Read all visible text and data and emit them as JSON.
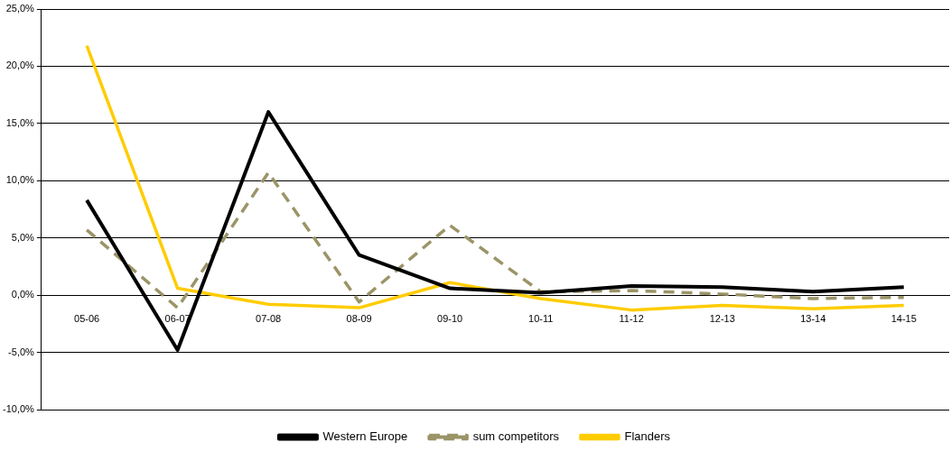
{
  "chart_data": {
    "type": "line",
    "categories": [
      "05-06",
      "06-07",
      "07-08",
      "08-09",
      "09-10",
      "10-11",
      "11-12",
      "12-13",
      "13-14",
      "14-15"
    ],
    "series": [
      {
        "name": "Western Europe",
        "color": "#000000",
        "line_style": "solid",
        "values": [
          8.3,
          -4.8,
          16.0,
          3.5,
          0.6,
          0.2,
          0.8,
          0.7,
          0.3,
          0.7
        ]
      },
      {
        "name": "sum competitors",
        "color": "#9b9467",
        "line_style": "dashed",
        "values": [
          5.7,
          -1.1,
          10.7,
          -0.6,
          6.1,
          0.3,
          0.4,
          0.1,
          -0.3,
          -0.2
        ]
      },
      {
        "name": "Flanders",
        "color": "#ffcc00",
        "line_style": "solid",
        "values": [
          21.8,
          0.6,
          -0.8,
          -1.1,
          1.1,
          -0.3,
          -1.3,
          -0.9,
          -1.2,
          -0.9
        ]
      }
    ],
    "ylim": [
      -10,
      25
    ],
    "yticks": [
      {
        "value": -10,
        "label": "-10,0%"
      },
      {
        "value": -5,
        "label": "-5,0%"
      },
      {
        "value": 0,
        "label": "0,0%"
      },
      {
        "value": 5,
        "label": "5,0%"
      },
      {
        "value": 10,
        "label": "10,0%"
      },
      {
        "value": 15,
        "label": "15,0%"
      },
      {
        "value": 20,
        "label": "20,0%"
      },
      {
        "value": 25,
        "label": "25,0%"
      }
    ],
    "grid": "y",
    "legend": "bottom",
    "marker": "none"
  }
}
